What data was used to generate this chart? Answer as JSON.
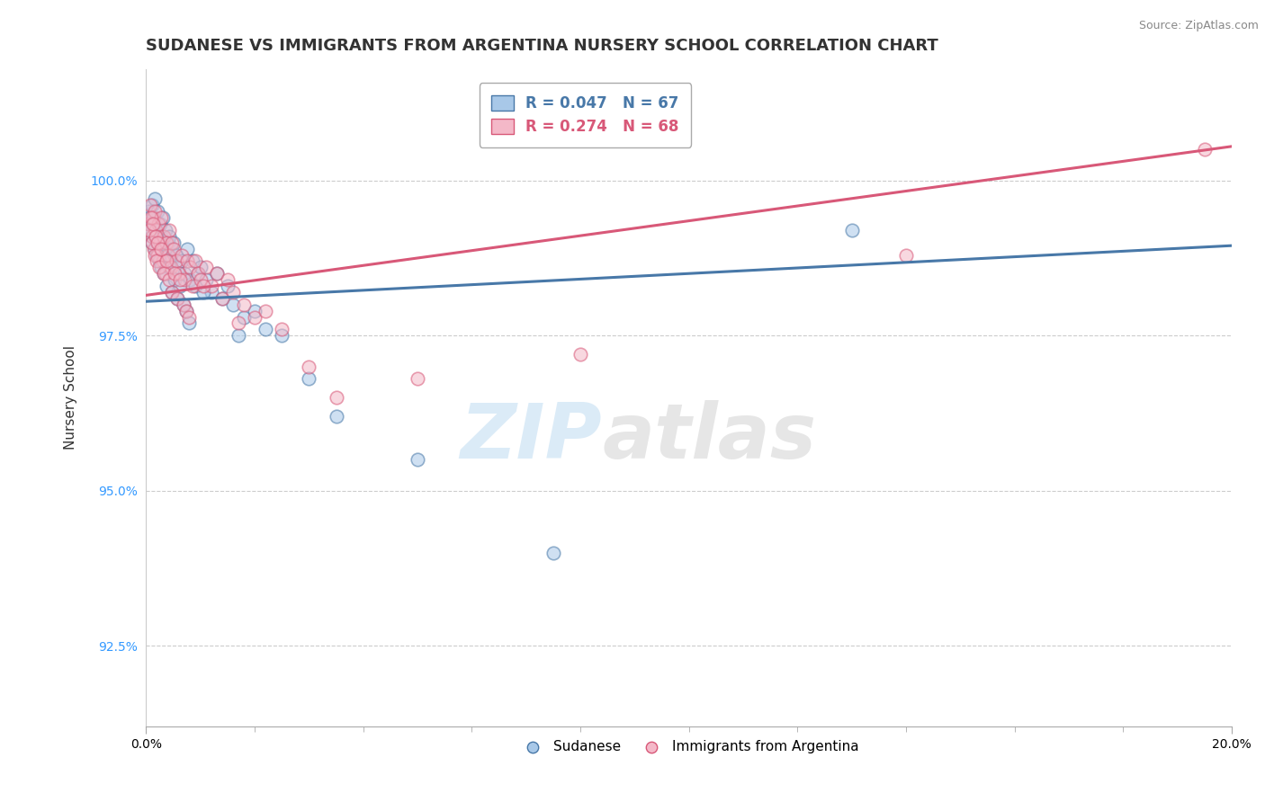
{
  "title": "SUDANESE VS IMMIGRANTS FROM ARGENTINA NURSERY SCHOOL CORRELATION CHART",
  "source": "Source: ZipAtlas.com",
  "ylabel": "Nursery School",
  "xlim": [
    0.0,
    20.0
  ],
  "ylim": [
    91.2,
    101.8
  ],
  "yticks": [
    92.5,
    95.0,
    97.5,
    100.0
  ],
  "ytick_labels": [
    "92.5%",
    "95.0%",
    "97.5%",
    "100.0%"
  ],
  "color_blue": "#a8c8e8",
  "color_pink": "#f4b8c8",
  "color_blue_line": "#4878a8",
  "color_pink_line": "#d85878",
  "sudanese_x": [
    0.05,
    0.08,
    0.1,
    0.12,
    0.14,
    0.16,
    0.18,
    0.2,
    0.22,
    0.25,
    0.28,
    0.3,
    0.33,
    0.35,
    0.38,
    0.4,
    0.43,
    0.45,
    0.48,
    0.5,
    0.55,
    0.6,
    0.65,
    0.7,
    0.75,
    0.8,
    0.85,
    0.9,
    0.95,
    1.0,
    1.1,
    1.2,
    1.3,
    1.4,
    1.5,
    1.6,
    1.8,
    2.0,
    2.2,
    2.5,
    0.06,
    0.09,
    0.11,
    0.13,
    0.15,
    0.17,
    0.19,
    0.21,
    0.24,
    0.27,
    0.32,
    0.37,
    0.42,
    0.47,
    0.52,
    0.57,
    0.62,
    0.68,
    0.73,
    0.78,
    1.05,
    1.7,
    3.0,
    3.5,
    5.0,
    7.5,
    13.0
  ],
  "sudanese_y": [
    99.5,
    99.3,
    99.6,
    99.1,
    99.4,
    99.7,
    99.2,
    99.5,
    99.0,
    99.3,
    99.1,
    99.4,
    98.9,
    99.2,
    98.8,
    99.0,
    99.1,
    98.7,
    98.9,
    99.0,
    98.8,
    98.6,
    98.7,
    98.5,
    98.9,
    98.4,
    98.7,
    98.3,
    98.5,
    98.6,
    98.4,
    98.2,
    98.5,
    98.1,
    98.3,
    98.0,
    97.8,
    97.9,
    97.6,
    97.5,
    99.4,
    99.2,
    99.0,
    99.3,
    98.9,
    99.1,
    98.8,
    99.0,
    98.7,
    98.6,
    98.5,
    98.3,
    98.6,
    98.2,
    98.4,
    98.1,
    98.3,
    98.0,
    97.9,
    97.7,
    98.2,
    97.5,
    96.8,
    96.2,
    95.5,
    94.0,
    99.2
  ],
  "argentina_x": [
    0.05,
    0.08,
    0.1,
    0.12,
    0.14,
    0.16,
    0.18,
    0.2,
    0.22,
    0.25,
    0.28,
    0.3,
    0.33,
    0.35,
    0.38,
    0.4,
    0.43,
    0.45,
    0.48,
    0.5,
    0.55,
    0.6,
    0.65,
    0.7,
    0.75,
    0.8,
    0.85,
    0.9,
    0.95,
    1.0,
    1.1,
    1.2,
    1.3,
    1.4,
    1.5,
    1.6,
    1.8,
    2.0,
    2.2,
    2.5,
    0.06,
    0.09,
    0.11,
    0.13,
    0.15,
    0.17,
    0.19,
    0.21,
    0.24,
    0.27,
    0.32,
    0.37,
    0.42,
    0.47,
    0.52,
    0.57,
    0.62,
    0.68,
    0.73,
    0.78,
    1.05,
    1.7,
    3.0,
    3.5,
    5.0,
    8.0,
    19.5,
    14.0
  ],
  "argentina_y": [
    99.3,
    99.6,
    99.1,
    99.4,
    98.9,
    99.5,
    99.2,
    98.8,
    99.3,
    99.0,
    99.4,
    98.7,
    99.1,
    98.5,
    99.0,
    98.8,
    99.2,
    98.6,
    99.0,
    98.9,
    98.7,
    98.5,
    98.8,
    98.4,
    98.7,
    98.6,
    98.3,
    98.7,
    98.5,
    98.4,
    98.6,
    98.3,
    98.5,
    98.1,
    98.4,
    98.2,
    98.0,
    97.8,
    97.9,
    97.6,
    99.2,
    99.4,
    99.0,
    99.3,
    98.8,
    99.1,
    98.7,
    99.0,
    98.6,
    98.9,
    98.5,
    98.7,
    98.4,
    98.2,
    98.5,
    98.1,
    98.4,
    98.0,
    97.9,
    97.8,
    98.3,
    97.7,
    97.0,
    96.5,
    96.8,
    97.2,
    100.5,
    98.8
  ],
  "blue_line_y0": 98.05,
  "blue_line_y1": 98.95,
  "pink_line_y0": 98.15,
  "pink_line_y1": 100.55,
  "watermark_zip": "ZIP",
  "watermark_atlas": "atlas",
  "background_color": "#ffffff",
  "grid_color": "#cccccc",
  "title_fontsize": 13,
  "axis_label_fontsize": 11,
  "tick_fontsize": 10,
  "legend_blue_label": "R = 0.047   N = 67",
  "legend_pink_label": "R = 0.274   N = 68",
  "legend_blue_color": "#4878a8",
  "legend_pink_color": "#d85878",
  "bottom_legend_blue": "Sudanese",
  "bottom_legend_pink": "Immigrants from Argentina"
}
